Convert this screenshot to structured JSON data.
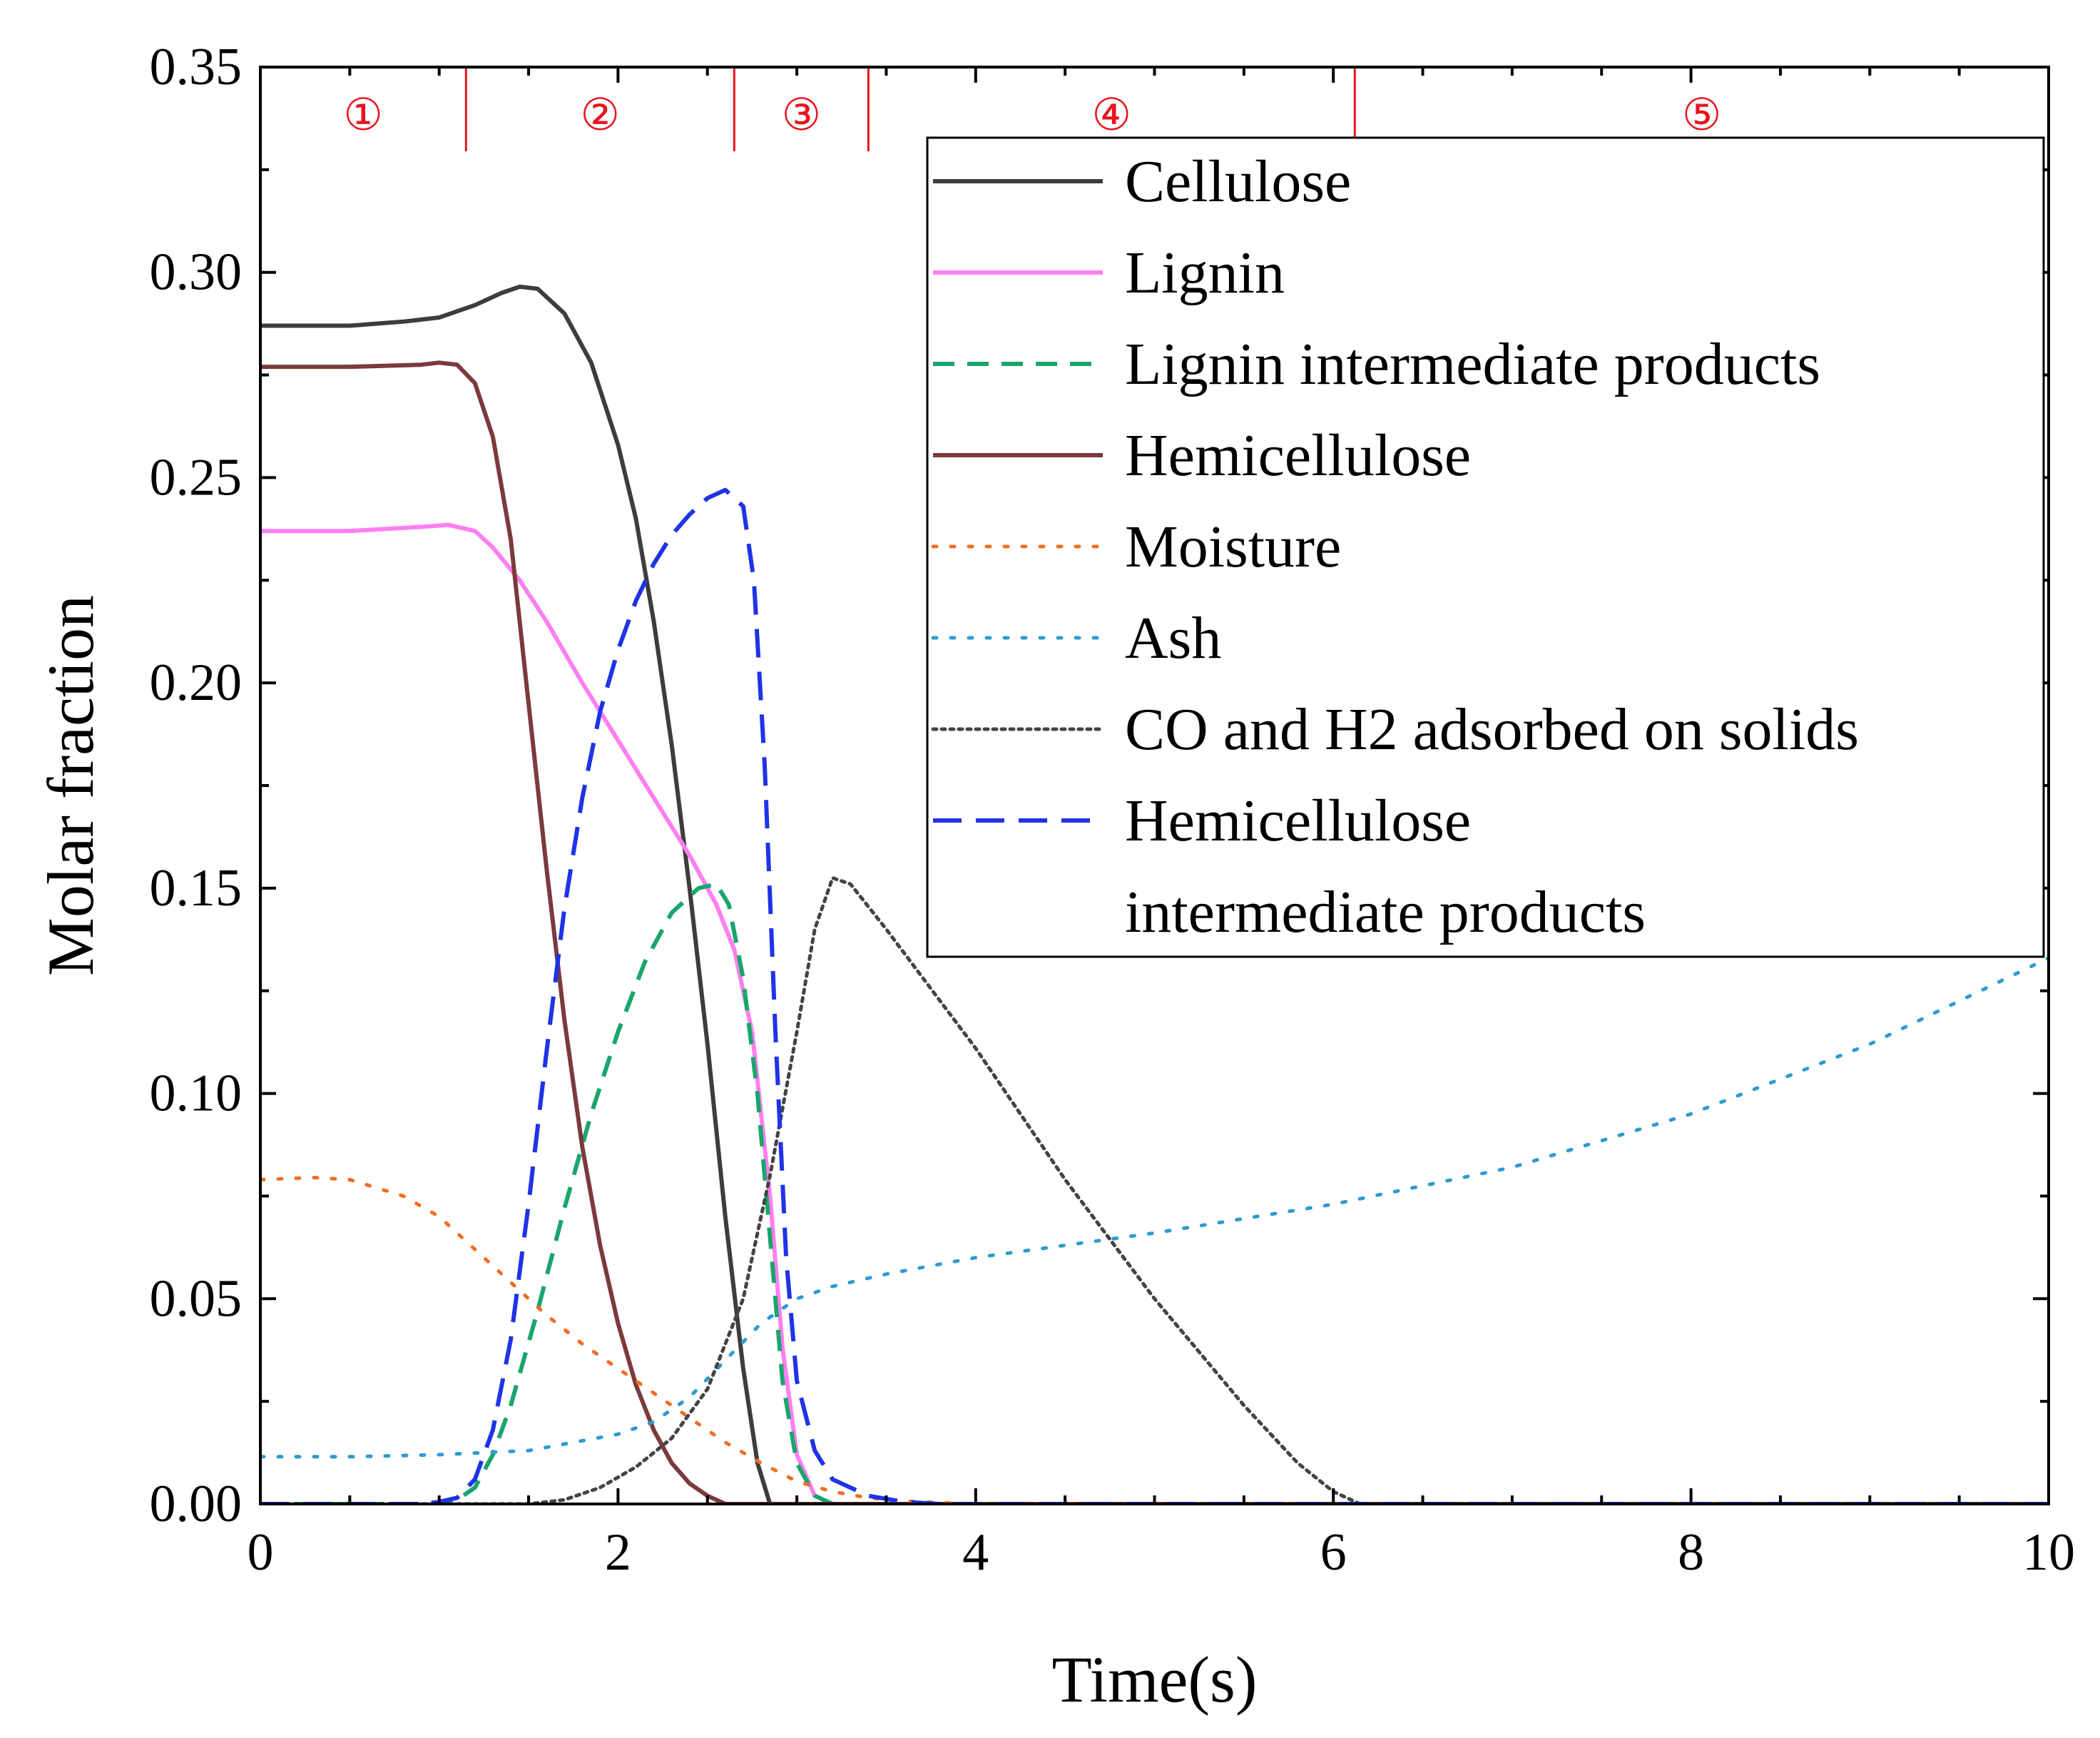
{
  "chart_data": {
    "type": "line",
    "title": "",
    "xlabel": "Time(s)",
    "ylabel": "Molar fraction",
    "xlim": [
      0,
      10
    ],
    "ylim": [
      0,
      0.35
    ],
    "x_ticks": [
      0,
      2,
      4,
      6,
      8,
      10
    ],
    "x_tick_labels": [
      "0",
      "2",
      "4",
      "6",
      "8",
      "10"
    ],
    "y_ticks": [
      0,
      0.05,
      0.1,
      0.15,
      0.2,
      0.25,
      0.3,
      0.35
    ],
    "y_tick_labels": [
      "0.00",
      "0.05",
      "0.10",
      "0.15",
      "0.20",
      "0.25",
      "0.30",
      "0.35"
    ],
    "grid": false,
    "legend_position": "top-right",
    "stage_color": "#e8141c",
    "stages": [
      {
        "label": "①",
        "x_start": 0,
        "x_end": 1.15
      },
      {
        "label": "②",
        "x_start": 1.15,
        "x_end": 2.65
      },
      {
        "label": "③",
        "x_start": 2.65,
        "x_end": 3.4
      },
      {
        "label": "④",
        "x_start": 3.4,
        "x_end": 6.12
      },
      {
        "label": "⑤",
        "x_start": 6.12,
        "x_end": 10
      }
    ],
    "series": [
      {
        "name": "Cellulose",
        "legend_lines": [
          "Cellulose"
        ],
        "color": "#3d3d3d",
        "style": "solid",
        "points": [
          [
            0,
            0.287
          ],
          [
            0.5,
            0.287
          ],
          [
            0.8,
            0.288
          ],
          [
            1.0,
            0.289
          ],
          [
            1.2,
            0.292
          ],
          [
            1.35,
            0.295
          ],
          [
            1.45,
            0.2965
          ],
          [
            1.55,
            0.296
          ],
          [
            1.7,
            0.29
          ],
          [
            1.85,
            0.278
          ],
          [
            2.0,
            0.258
          ],
          [
            2.1,
            0.24
          ],
          [
            2.2,
            0.215
          ],
          [
            2.3,
            0.185
          ],
          [
            2.4,
            0.15
          ],
          [
            2.5,
            0.112
          ],
          [
            2.6,
            0.07
          ],
          [
            2.7,
            0.033
          ],
          [
            2.78,
            0.01
          ],
          [
            2.85,
            0.0
          ],
          [
            10,
            0.0
          ]
        ]
      },
      {
        "name": "Lignin",
        "legend_lines": [
          "Lignin"
        ],
        "color": "#ff7ff0",
        "style": "solid",
        "points": [
          [
            0,
            0.237
          ],
          [
            0.5,
            0.237
          ],
          [
            0.9,
            0.238
          ],
          [
            1.05,
            0.2385
          ],
          [
            1.2,
            0.237
          ],
          [
            1.3,
            0.233
          ],
          [
            1.45,
            0.225
          ],
          [
            1.6,
            0.215
          ],
          [
            1.8,
            0.2
          ],
          [
            2.0,
            0.186
          ],
          [
            2.2,
            0.172
          ],
          [
            2.4,
            0.158
          ],
          [
            2.55,
            0.146
          ],
          [
            2.65,
            0.135
          ],
          [
            2.75,
            0.115
          ],
          [
            2.85,
            0.075
          ],
          [
            2.92,
            0.038
          ],
          [
            3.0,
            0.012
          ],
          [
            3.1,
            0.002
          ],
          [
            3.2,
            0.0
          ],
          [
            10,
            0.0
          ]
        ]
      },
      {
        "name": "Lignin intermediate products",
        "legend_lines": [
          "Lignin intermediate products"
        ],
        "color": "#1aa56b",
        "style": "dash",
        "points": [
          [
            0,
            0.0
          ],
          [
            1.0,
            0.0
          ],
          [
            1.1,
            0.001
          ],
          [
            1.2,
            0.004
          ],
          [
            1.3,
            0.012
          ],
          [
            1.4,
            0.024
          ],
          [
            1.55,
            0.047
          ],
          [
            1.7,
            0.072
          ],
          [
            1.85,
            0.095
          ],
          [
            2.0,
            0.115
          ],
          [
            2.15,
            0.132
          ],
          [
            2.3,
            0.144
          ],
          [
            2.45,
            0.15
          ],
          [
            2.55,
            0.151
          ],
          [
            2.62,
            0.146
          ],
          [
            2.7,
            0.128
          ],
          [
            2.78,
            0.1
          ],
          [
            2.85,
            0.065
          ],
          [
            2.92,
            0.03
          ],
          [
            3.0,
            0.01
          ],
          [
            3.1,
            0.002
          ],
          [
            3.2,
            0.0
          ],
          [
            10,
            0.0
          ]
        ]
      },
      {
        "name": "Hemicellulose",
        "legend_lines": [
          "Hemicellulose"
        ],
        "color": "#7b3a3c",
        "style": "solid",
        "points": [
          [
            0,
            0.277
          ],
          [
            0.5,
            0.277
          ],
          [
            0.9,
            0.2775
          ],
          [
            1.0,
            0.278
          ],
          [
            1.1,
            0.2775
          ],
          [
            1.2,
            0.273
          ],
          [
            1.3,
            0.26
          ],
          [
            1.4,
            0.235
          ],
          [
            1.5,
            0.195
          ],
          [
            1.6,
            0.155
          ],
          [
            1.7,
            0.118
          ],
          [
            1.8,
            0.087
          ],
          [
            1.9,
            0.063
          ],
          [
            2.0,
            0.044
          ],
          [
            2.1,
            0.029
          ],
          [
            2.2,
            0.018
          ],
          [
            2.3,
            0.01
          ],
          [
            2.4,
            0.005
          ],
          [
            2.5,
            0.002
          ],
          [
            2.6,
            0.0
          ],
          [
            10,
            0.0
          ]
        ]
      },
      {
        "name": "Moisture",
        "legend_lines": [
          "Moisture"
        ],
        "color": "#f26d21",
        "style": "dot",
        "points": [
          [
            0,
            0.079
          ],
          [
            0.3,
            0.0795
          ],
          [
            0.5,
            0.079
          ],
          [
            0.8,
            0.075
          ],
          [
            1.0,
            0.07
          ],
          [
            1.2,
            0.062
          ],
          [
            1.4,
            0.054
          ],
          [
            1.6,
            0.046
          ],
          [
            1.8,
            0.039
          ],
          [
            2.0,
            0.033
          ],
          [
            2.2,
            0.027
          ],
          [
            2.4,
            0.021
          ],
          [
            2.6,
            0.015
          ],
          [
            2.8,
            0.01
          ],
          [
            3.0,
            0.0055
          ],
          [
            3.2,
            0.003
          ],
          [
            3.4,
            0.0015
          ],
          [
            3.6,
            0.0007
          ],
          [
            4.0,
            0.0
          ],
          [
            10,
            0.0
          ]
        ]
      },
      {
        "name": "Ash",
        "legend_lines": [
          "Ash"
        ],
        "color": "#2e9bd1",
        "style": "dot",
        "points": [
          [
            0,
            0.0115
          ],
          [
            0.5,
            0.0115
          ],
          [
            1.0,
            0.012
          ],
          [
            1.5,
            0.013
          ],
          [
            2.0,
            0.017
          ],
          [
            2.2,
            0.02
          ],
          [
            2.4,
            0.026
          ],
          [
            2.6,
            0.035
          ],
          [
            2.8,
            0.044
          ],
          [
            3.0,
            0.05
          ],
          [
            3.2,
            0.053
          ],
          [
            3.5,
            0.056
          ],
          [
            4.0,
            0.06
          ],
          [
            5.0,
            0.066
          ],
          [
            6.0,
            0.073
          ],
          [
            7.0,
            0.082
          ],
          [
            8.0,
            0.095
          ],
          [
            9.0,
            0.112
          ],
          [
            10.0,
            0.133
          ]
        ]
      },
      {
        "name": "CO and H2 adsorbed on solids",
        "legend_lines": [
          "CO and H2 adsorbed on solids"
        ],
        "color": "#444444",
        "style": "finedot",
        "points": [
          [
            0,
            0.0
          ],
          [
            1.5,
            0.0
          ],
          [
            1.7,
            0.001
          ],
          [
            1.9,
            0.004
          ],
          [
            2.1,
            0.009
          ],
          [
            2.3,
            0.016
          ],
          [
            2.5,
            0.028
          ],
          [
            2.7,
            0.05
          ],
          [
            2.85,
            0.08
          ],
          [
            3.0,
            0.115
          ],
          [
            3.1,
            0.14
          ],
          [
            3.2,
            0.1525
          ],
          [
            3.3,
            0.151
          ],
          [
            3.5,
            0.14
          ],
          [
            4.0,
            0.111
          ],
          [
            4.5,
            0.079
          ],
          [
            5.0,
            0.05
          ],
          [
            5.5,
            0.024
          ],
          [
            5.8,
            0.01
          ],
          [
            6.0,
            0.003
          ],
          [
            6.15,
            0.0
          ],
          [
            10,
            0.0
          ]
        ]
      },
      {
        "name": "Hemicellulose intermediate products",
        "legend_lines": [
          "Hemicellulose",
          "intermediate products"
        ],
        "color": "#1f33e6",
        "style": "dashlong",
        "points": [
          [
            0,
            0.0
          ],
          [
            0.9,
            0.0
          ],
          [
            1.0,
            0.0005
          ],
          [
            1.1,
            0.0015
          ],
          [
            1.2,
            0.006
          ],
          [
            1.3,
            0.018
          ],
          [
            1.4,
            0.04
          ],
          [
            1.5,
            0.073
          ],
          [
            1.6,
            0.11
          ],
          [
            1.7,
            0.145
          ],
          [
            1.8,
            0.172
          ],
          [
            1.9,
            0.193
          ],
          [
            2.0,
            0.208
          ],
          [
            2.1,
            0.22
          ],
          [
            2.2,
            0.229
          ],
          [
            2.3,
            0.236
          ],
          [
            2.4,
            0.241
          ],
          [
            2.5,
            0.245
          ],
          [
            2.6,
            0.247
          ],
          [
            2.7,
            0.243
          ],
          [
            2.76,
            0.225
          ],
          [
            2.82,
            0.18
          ],
          [
            2.88,
            0.115
          ],
          [
            2.94,
            0.06
          ],
          [
            3.0,
            0.03
          ],
          [
            3.1,
            0.013
          ],
          [
            3.2,
            0.006
          ],
          [
            3.4,
            0.002
          ],
          [
            3.6,
            0.0005
          ],
          [
            3.8,
            0.0
          ],
          [
            10,
            0.0
          ]
        ]
      }
    ]
  }
}
